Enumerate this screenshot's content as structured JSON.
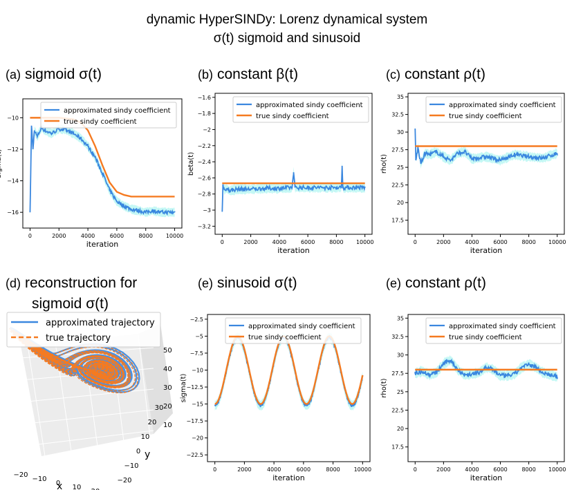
{
  "figure": {
    "title_line1": "dynamic HyperSINDy: Lorenz dynamical system",
    "title_line2": "σ(t) sigmoid and sinusoid"
  },
  "colors": {
    "approx": "#3a87df",
    "true": "#f57a20",
    "band": "#7ff0e8",
    "traj_true": "#f57a20",
    "traj_approx": "#3a87df"
  },
  "panels": [
    {
      "label": "(a)",
      "title": "sigmoid σ(t)"
    },
    {
      "label": "(b)",
      "title": "constant β(t)"
    },
    {
      "label": "(c)",
      "title": "constant ρ(t)"
    },
    {
      "label": "(d)",
      "title": "reconstruction for",
      "title2": "sigmoid σ(t)"
    },
    {
      "label": "(e)",
      "title": "sinusoid σ(t)"
    },
    {
      "label": "(e)",
      "title": "constant ρ(t)"
    }
  ],
  "chart_data": [
    {
      "id": "a",
      "type": "line",
      "xlabel": "iteration",
      "ylabel": "sigma(t)",
      "xlim": [
        -500,
        10500
      ],
      "ylim": [
        -17,
        -8.8
      ],
      "xticks": [
        0,
        2000,
        4000,
        6000,
        8000,
        10000
      ],
      "yticks": [
        -16,
        -14,
        -12,
        -10
      ],
      "legend": [
        "approximated sindy coefficient",
        "true sindy coefficient"
      ],
      "series": [
        {
          "name": "approximated sindy coefficient",
          "x": [
            0,
            100,
            200,
            300,
            500,
            800,
            1000,
            1500,
            2000,
            2500,
            3000,
            3500,
            4000,
            4500,
            5000,
            5500,
            6000,
            6500,
            7000,
            7500,
            8000,
            8500,
            9000,
            9500,
            10000
          ],
          "y": [
            -16.0,
            -10.5,
            -12.0,
            -10.8,
            -11.2,
            -10.6,
            -10.8,
            -11.0,
            -10.7,
            -10.8,
            -11.0,
            -11.3,
            -11.8,
            -12.5,
            -13.5,
            -14.6,
            -15.3,
            -15.6,
            -15.8,
            -15.9,
            -16.0,
            -15.9,
            -16.0,
            -16.0,
            -16.0
          ]
        },
        {
          "name": "true sindy coefficient",
          "x": [
            0,
            1000,
            2000,
            3000,
            3500,
            4000,
            4500,
            5000,
            5500,
            6000,
            6500,
            7000,
            8000,
            9000,
            10000
          ],
          "y": [
            -10.0,
            -10.0,
            -10.0,
            -10.1,
            -10.3,
            -10.8,
            -11.8,
            -13.0,
            -14.1,
            -14.7,
            -14.9,
            -15.0,
            -15.0,
            -15.0,
            -15.0
          ]
        }
      ]
    },
    {
      "id": "b",
      "type": "line",
      "xlabel": "iteration",
      "ylabel": "beta(t)",
      "xlim": [
        -500,
        10500
      ],
      "ylim": [
        -3.3,
        -1.55
      ],
      "xticks": [
        0,
        2000,
        4000,
        6000,
        8000,
        10000
      ],
      "yticks": [
        -3.2,
        -3.0,
        -2.8,
        -2.6,
        -2.4,
        -2.2,
        -2.0,
        -1.8,
        -1.6
      ],
      "legend": [
        "approximated sindy coefficient",
        "true sindy coefficient"
      ],
      "series": [
        {
          "name": "approximated sindy coefficient",
          "x": [
            0,
            50,
            150,
            300,
            500,
            1000,
            2000,
            3000,
            4000,
            4900,
            5000,
            5100,
            6000,
            7000,
            8000,
            8350,
            8400,
            8450,
            9000,
            10000
          ],
          "y": [
            -3.02,
            -2.68,
            -2.75,
            -2.73,
            -2.76,
            -2.74,
            -2.74,
            -2.73,
            -2.73,
            -2.72,
            -2.53,
            -2.72,
            -2.72,
            -2.72,
            -2.72,
            -2.72,
            -2.45,
            -2.72,
            -2.72,
            -2.72
          ]
        },
        {
          "name": "true sindy coefficient",
          "x": [
            0,
            10000
          ],
          "y": [
            -2.667,
            -2.667
          ]
        }
      ]
    },
    {
      "id": "c",
      "type": "line",
      "xlabel": "iteration",
      "ylabel": "rho(t)",
      "xlim": [
        -500,
        10500
      ],
      "ylim": [
        15.5,
        35.5
      ],
      "xticks": [
        0,
        2000,
        4000,
        6000,
        8000,
        10000
      ],
      "yticks": [
        17.5,
        20.0,
        22.5,
        25.0,
        27.5,
        30.0,
        32.5,
        35.0
      ],
      "legend": [
        "approximated sindy coefficient",
        "true sindy coefficient"
      ],
      "series": [
        {
          "name": "approximated sindy coefficient",
          "x": [
            0,
            50,
            200,
            400,
            700,
            1000,
            1500,
            2000,
            2500,
            3000,
            3500,
            4000,
            5000,
            6000,
            7000,
            8000,
            9000,
            10000
          ],
          "y": [
            30.5,
            26.0,
            27.8,
            25.5,
            27.0,
            26.8,
            27.2,
            26.5,
            26.0,
            27.0,
            27.2,
            26.2,
            26.5,
            26.0,
            26.8,
            26.5,
            26.3,
            27.0
          ]
        },
        {
          "name": "true sindy coefficient",
          "x": [
            0,
            10000
          ],
          "y": [
            28.0,
            28.0
          ]
        }
      ]
    },
    {
      "id": "e1",
      "type": "line",
      "xlabel": "iteration",
      "ylabel": "sigma(t)",
      "xlim": [
        -500,
        10500
      ],
      "ylim": [
        -23.5,
        -1.8
      ],
      "xticks": [
        0,
        2000,
        4000,
        6000,
        8000,
        10000
      ],
      "yticks": [
        -22.5,
        -20.0,
        -17.5,
        -15.0,
        -12.5,
        -10.0,
        -7.5,
        -5.0,
        -2.5
      ],
      "legend": [
        "approximated sindy coefficient",
        "true sindy coefficient"
      ],
      "series": [
        {
          "name": "approximated sindy coefficient",
          "generator": "sin",
          "center": -10.2,
          "amplitude": 5.0,
          "period": 3100,
          "phase0": 1.57
        },
        {
          "name": "true sindy coefficient",
          "generator": "sin",
          "center": -10.0,
          "amplitude": 5.0,
          "period": 3100,
          "phase0": 1.57
        }
      ]
    },
    {
      "id": "e2",
      "type": "line",
      "xlabel": "iteration",
      "ylabel": "rho(t)",
      "xlim": [
        -500,
        10500
      ],
      "ylim": [
        15.5,
        35.5
      ],
      "xticks": [
        0,
        2000,
        4000,
        6000,
        8000,
        10000
      ],
      "yticks": [
        17.5,
        20.0,
        22.5,
        25.0,
        27.5,
        30.0,
        32.5,
        35.0
      ],
      "legend": [
        "approximated sindy coefficient",
        "true sindy coefficient"
      ],
      "series": [
        {
          "name": "approximated sindy coefficient",
          "x": [
            0,
            500,
            1000,
            1500,
            2000,
            2500,
            3000,
            3500,
            4000,
            4500,
            5000,
            5500,
            6000,
            6500,
            7000,
            7500,
            8000,
            8500,
            9000,
            9500,
            10000
          ],
          "y": [
            27.5,
            27.8,
            27.3,
            27.6,
            28.8,
            29.3,
            28.0,
            27.3,
            27.4,
            27.6,
            28.3,
            28.0,
            27.2,
            27.2,
            27.4,
            28.3,
            28.7,
            28.3,
            27.6,
            27.3,
            27.0
          ]
        },
        {
          "name": "true sindy coefficient",
          "x": [
            0,
            10000
          ],
          "y": [
            28.0,
            28.0
          ]
        }
      ]
    },
    {
      "id": "d",
      "type": "scatter3d",
      "xlabel": "x",
      "ylabel": "y",
      "xticks": [
        -20,
        -10,
        0,
        10,
        20
      ],
      "yticks": [
        -20,
        -10,
        0,
        10,
        20,
        30
      ],
      "zticks": [
        10,
        20,
        30,
        40,
        50
      ],
      "legend": [
        "approximated trajectory",
        "true trajectory"
      ]
    }
  ]
}
